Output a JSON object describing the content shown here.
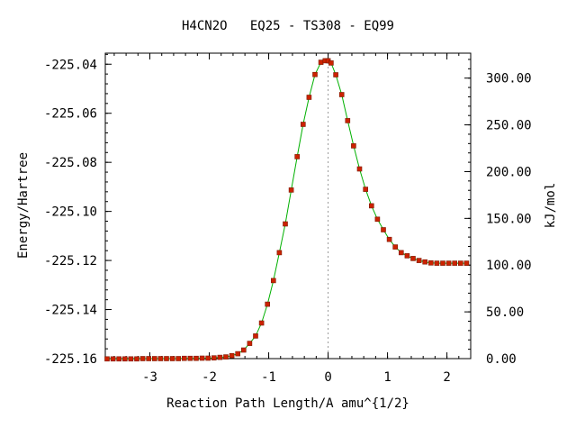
{
  "chart_data": {
    "type": "line",
    "title": "H4CN2O   EQ25 - TS308 - EQ99",
    "xlabel": "Reaction Path Length/A amu^{1/2}",
    "ylabel": "Energy/Hartree",
    "y2label": "kJ/mol",
    "xlim": [
      -3.75,
      2.4
    ],
    "ylim": [
      -225.16,
      -225.0355
    ],
    "y2lim": [
      0,
      326.7
    ],
    "x_ticks": [
      -3,
      -2,
      -1,
      0,
      1,
      2
    ],
    "x_tick_labels": [
      "-3",
      "-2",
      "-1",
      "0",
      "1",
      "2"
    ],
    "y_ticks": [
      -225.16,
      -225.14,
      -225.12,
      -225.1,
      -225.08,
      -225.06,
      -225.04
    ],
    "y_tick_labels": [
      "-225.16",
      "-225.14",
      "-225.12",
      "-225.10",
      "-225.08",
      "-225.06",
      "-225.04"
    ],
    "y2_ticks": [
      0,
      50,
      100,
      150,
      200,
      250,
      300
    ],
    "y2_tick_labels": [
      "0.00",
      "50.00",
      "100.00",
      "150.00",
      "200.00",
      "250.00",
      "300.00"
    ],
    "grid": false,
    "ts_marker_x": 0,
    "colors": {
      "line": "#00b000",
      "marker": "#cc2200",
      "marker_edge": "#7a1a00",
      "ts_line": "#999999"
    },
    "series": [
      {
        "x": [
          -3.72,
          -3.62,
          -3.52,
          -3.42,
          -3.32,
          -3.22,
          -3.12,
          -3.02,
          -2.92,
          -2.82,
          -2.72,
          -2.62,
          -2.52,
          -2.42,
          -2.32,
          -2.22,
          -2.12,
          -2.02,
          -1.92,
          -1.82,
          -1.72,
          -1.62,
          -1.52,
          -1.42,
          -1.32,
          -1.22,
          -1.12,
          -1.02,
          -0.92,
          -0.82,
          -0.72,
          -0.62,
          -0.52,
          -0.42,
          -0.32,
          -0.22,
          -0.12,
          -0.05,
          0.0,
          0.05,
          0.13,
          0.23,
          0.33,
          0.43,
          0.53,
          0.63,
          0.73,
          0.83,
          0.93,
          1.03,
          1.13,
          1.23,
          1.33,
          1.43,
          1.53,
          1.63,
          1.73,
          1.83,
          1.93,
          2.03,
          2.13,
          2.23,
          2.33
        ],
        "y": [
          -225.1601,
          -225.1601,
          -225.1601,
          -225.1601,
          -225.1601,
          -225.1601,
          -225.16,
          -225.16,
          -225.16,
          -225.16,
          -225.16,
          -225.16,
          -225.16,
          -225.1599,
          -225.1599,
          -225.1599,
          -225.1598,
          -225.1598,
          -225.1597,
          -225.1595,
          -225.1593,
          -225.1588,
          -225.158,
          -225.1565,
          -225.1538,
          -225.1508,
          -225.1455,
          -225.1378,
          -225.1282,
          -225.1168,
          -225.1051,
          -225.0913,
          -225.0777,
          -225.0645,
          -225.0535,
          -225.0442,
          -225.0392,
          -225.0386,
          -225.0386,
          -225.0395,
          -225.0443,
          -225.0524,
          -225.063,
          -225.0733,
          -225.0827,
          -225.091,
          -225.0977,
          -225.1032,
          -225.1075,
          -225.1114,
          -225.1145,
          -225.1168,
          -225.1181,
          -225.1192,
          -225.12,
          -225.1206,
          -225.121,
          -225.1211,
          -225.1211,
          -225.1211,
          -225.1211,
          -225.1211,
          -225.1211
        ]
      }
    ]
  }
}
